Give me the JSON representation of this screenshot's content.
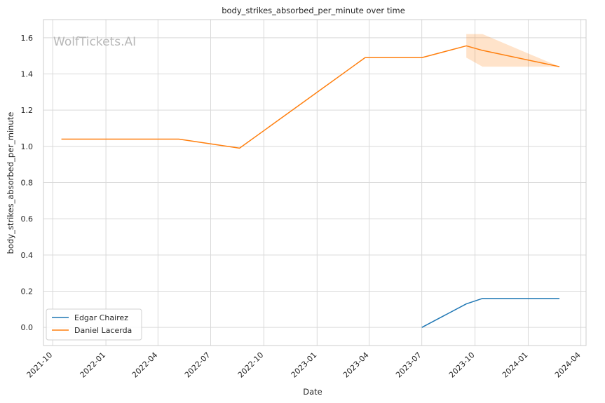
{
  "chart_data": {
    "type": "line",
    "title": "body_strikes_absorbed_per_minute over time",
    "xlabel": "Date",
    "ylabel": "body_strikes_absorbed_per_minute",
    "watermark": "WolfTickets.AI",
    "ylim": [
      -0.1,
      1.7
    ],
    "xlim": [
      "2021-09-15",
      "2024-04-10"
    ],
    "y_ticks": [
      "0.0",
      "0.2",
      "0.4",
      "0.6",
      "0.8",
      "1.0",
      "1.2",
      "1.4",
      "1.6"
    ],
    "x_ticks": [
      "2021-10",
      "2022-01",
      "2022-04",
      "2022-07",
      "2022-10",
      "2023-01",
      "2023-04",
      "2023-07",
      "2023-10",
      "2024-01",
      "2024-04"
    ],
    "grid": true,
    "legend_position": "lower-left",
    "series": [
      {
        "name": "Edgar Chairez",
        "color": "#1f77b4",
        "x": [
          "2023-07-01",
          "2023-09-16",
          "2023-10-14",
          "2024-02-24"
        ],
        "values": [
          0.0,
          0.13,
          0.16,
          0.16
        ]
      },
      {
        "name": "Daniel Lacerda",
        "color": "#ff7f0e",
        "x": [
          "2021-10-16",
          "2022-05-07",
          "2022-08-20",
          "2023-03-25",
          "2023-07-01",
          "2023-09-16",
          "2023-10-14",
          "2024-02-24"
        ],
        "values": [
          1.04,
          1.04,
          0.99,
          1.49,
          1.49,
          1.555,
          1.53,
          1.44
        ],
        "band": {
          "x": [
            "2023-09-16",
            "2023-10-14",
            "2024-02-24"
          ],
          "low": [
            1.49,
            1.44,
            1.44
          ],
          "high": [
            1.62,
            1.62,
            1.44
          ]
        }
      }
    ]
  }
}
